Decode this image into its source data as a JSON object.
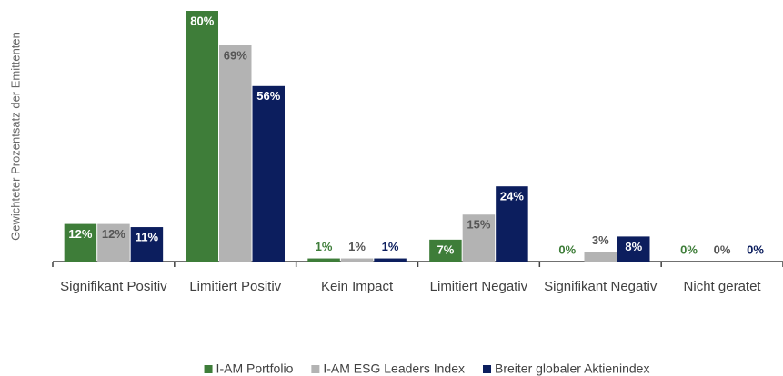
{
  "chart_data": {
    "type": "bar",
    "y_label": "Gewichteter Prozentsatz der Emittenten",
    "categories": [
      "Signifikant Positiv",
      "Limitiert Positiv",
      "Kein Impact",
      "Limitiert Negativ",
      "Signifikant Negativ",
      "Nicht geratet"
    ],
    "series": [
      {
        "name": "I-AM Portfolio",
        "color": "#3e7d39",
        "values": [
          12,
          80,
          1,
          7,
          0,
          0
        ],
        "value_labels": [
          "12%",
          "80%",
          "1%",
          "7%",
          "0%",
          "0%"
        ]
      },
      {
        "name": "I-AM ESG Leaders Index",
        "color": "#b3b3b3",
        "values": [
          12,
          69,
          1,
          15,
          3,
          0
        ],
        "value_labels": [
          "12%",
          "69%",
          "1%",
          "15%",
          "3%",
          "0%"
        ]
      },
      {
        "name": "Breiter globaler Aktienindex",
        "color": "#0c1e5e",
        "values": [
          11,
          56,
          1,
          24,
          8,
          0
        ],
        "value_labels": [
          "11%",
          "56%",
          "1%",
          "24%",
          "8%",
          "0%"
        ]
      }
    ],
    "legend": "bottom"
  }
}
